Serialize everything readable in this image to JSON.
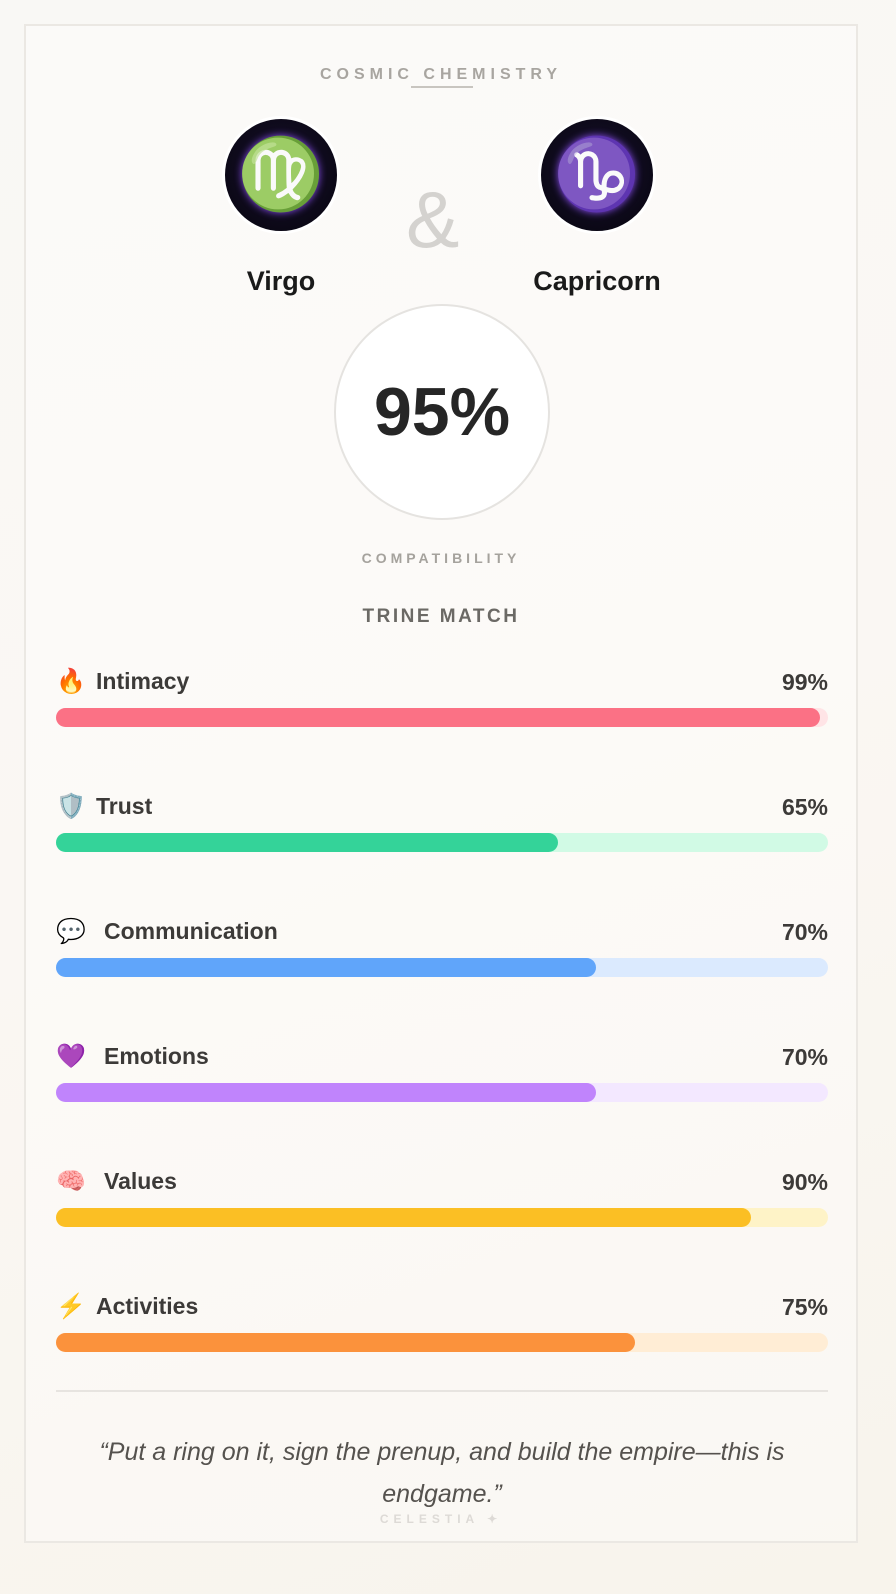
{
  "header": {
    "kicker": "COSMIC CHEMISTRY"
  },
  "signs": [
    {
      "name": "Virgo",
      "glyph": "♍",
      "icon": "virgo-icon"
    },
    {
      "name": "Capricorn",
      "glyph": "♑",
      "icon": "capricorn-icon"
    }
  ],
  "ampersand": "&",
  "score": {
    "value": "95%",
    "label": "COMPATIBILITY",
    "match_type": "TRINE MATCH"
  },
  "categories": [
    {
      "label": "Intimacy",
      "percent": 99,
      "percent_text": "99%",
      "icon": "fire-icon",
      "glyph": "🔥",
      "color": "#fb7185",
      "track": "#ffe4e6"
    },
    {
      "label": "Trust",
      "percent": 65,
      "percent_text": "65%",
      "icon": "shield-icon",
      "glyph": "🛡️",
      "color": "#34d399",
      "track": "#d1fae5"
    },
    {
      "label": "Communication",
      "percent": 70,
      "percent_text": "70%",
      "icon": "speech-bubble-icon",
      "glyph": "💬",
      "color": "#60a5fa",
      "track": "#dbeafe"
    },
    {
      "label": "Emotions",
      "percent": 70,
      "percent_text": "70%",
      "icon": "purple-heart-icon",
      "glyph": "💜",
      "color": "#c084fc",
      "track": "#f3e8ff"
    },
    {
      "label": "Values",
      "percent": 90,
      "percent_text": "90%",
      "icon": "brain-icon",
      "glyph": "🧠",
      "color": "#fbbf24",
      "track": "#fef3c7"
    },
    {
      "label": "Activities",
      "percent": 75,
      "percent_text": "75%",
      "icon": "lightning-icon",
      "glyph": "⚡",
      "color": "#fb923c",
      "track": "#ffedd5"
    }
  ],
  "quote": "“Put a ring on it, sign the prenup, and build the empire—this is endgame.”",
  "brand": "CELESTIA ✦"
}
